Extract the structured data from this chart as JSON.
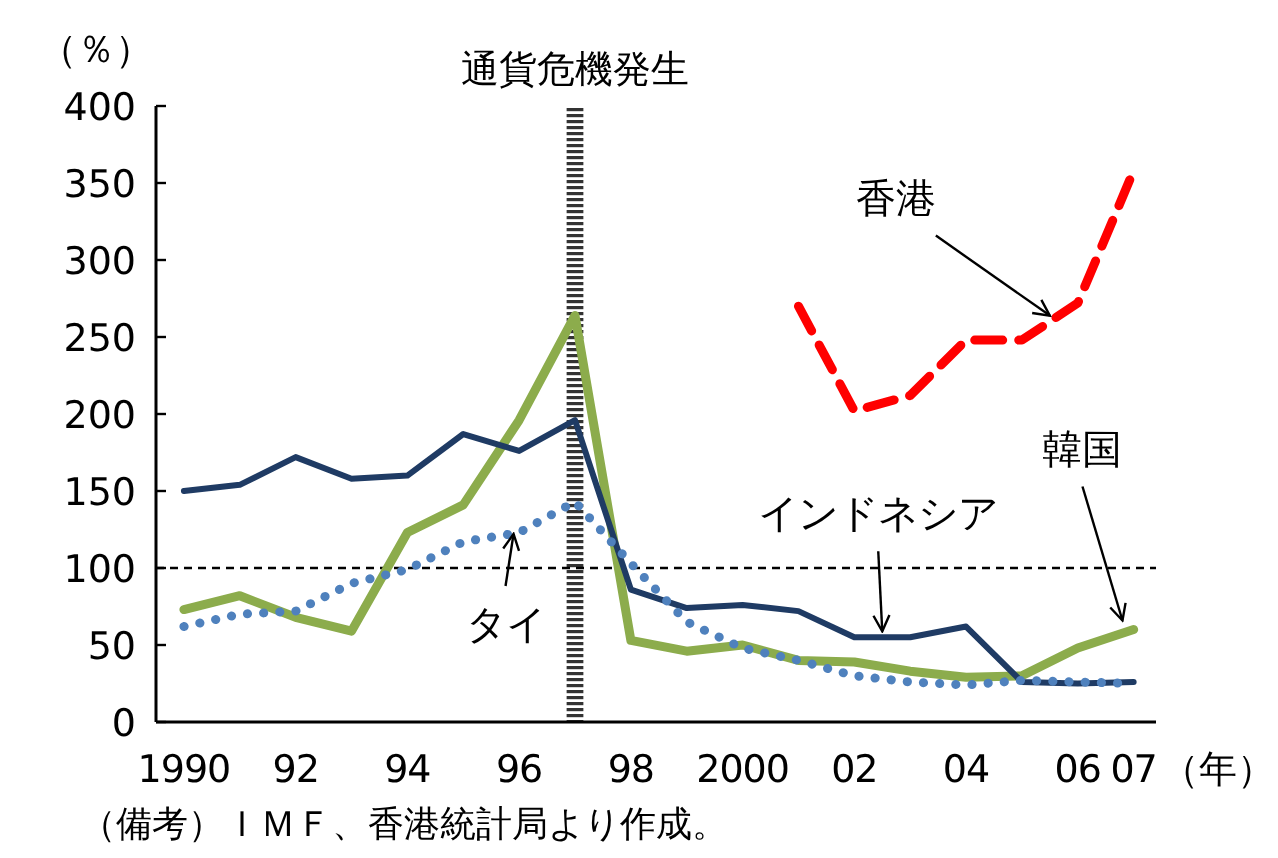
{
  "chart_data": {
    "type": "line",
    "ylabel": "（％）",
    "xlabel": "（年）",
    "x": [
      1990,
      1991,
      1992,
      1993,
      1994,
      1995,
      1996,
      1997,
      1998,
      1999,
      2000,
      2001,
      2002,
      2003,
      2004,
      2005,
      2006,
      2007
    ],
    "xlim": [
      1989.5,
      2007.4
    ],
    "xticks": [
      1990,
      {
        "value": 1992,
        "label": "92"
      },
      {
        "value": 1994,
        "label": "94"
      },
      {
        "value": 1996,
        "label": "96"
      },
      {
        "value": 1998,
        "label": "98"
      },
      2000,
      {
        "value": 2002,
        "label": "02"
      },
      {
        "value": 2004,
        "label": "04"
      },
      {
        "value": 2006,
        "label": "06"
      },
      {
        "value": 2007,
        "label": "07"
      }
    ],
    "ylim": [
      0,
      400
    ],
    "yticks": [
      0,
      50,
      100,
      150,
      200,
      250,
      300,
      350,
      400
    ],
    "marker": "none",
    "series": [
      {
        "color": "#8cac4c",
        "line_style": "solid",
        "values": [
          73,
          82,
          68,
          59,
          123,
          141,
          196,
          264,
          53,
          46,
          50,
          40,
          39,
          33,
          29,
          30,
          48,
          60
        ]
      },
      {
        "color": "#1f3b64",
        "line_style": "solid",
        "values": [
          150,
          154,
          172,
          158,
          160,
          187,
          176,
          196,
          86,
          74,
          76,
          72,
          55,
          55,
          62,
          26,
          25,
          26
        ]
      },
      {
        "color": "#4f81bd",
        "line_style": "dotted",
        "values": [
          62,
          70,
          72,
          90,
          99,
          117,
          123,
          143,
          103,
          65,
          48,
          40,
          30,
          26,
          24,
          27,
          26,
          25
        ]
      },
      {
        "color": "#ff0000",
        "line_style": "dashed",
        "values": [
          null,
          null,
          null,
          null,
          null,
          null,
          null,
          null,
          null,
          null,
          null,
          270,
          202,
          212,
          248,
          248,
          272,
          358
        ]
      }
    ],
    "ref_lines": [
      {
        "axis": "y",
        "value": 100,
        "line_style": "dashed",
        "color": "#000000"
      }
    ],
    "bands": [
      {
        "axis": "x",
        "from": 1996.85,
        "to": 1997.15,
        "label": "通貨危機発生"
      }
    ],
    "annotations": [
      {
        "text": "香港",
        "x": 2005.5,
        "y": 260
      },
      {
        "text": "インドネシア",
        "x": 2002.5,
        "y": 55
      },
      {
        "text": "韓国",
        "x": 2006.8,
        "y": 62
      },
      {
        "text": "タイ",
        "x": 1995.9,
        "y": 126
      },
      "（備考）ＩＭＦ、香港統計局より作成。"
    ]
  }
}
